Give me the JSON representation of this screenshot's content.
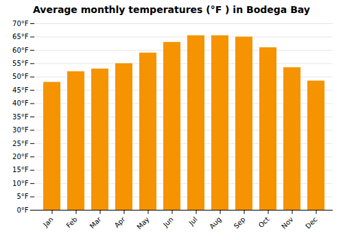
{
  "chart_data": {
    "type": "bar",
    "title": "Average monthly temperatures (°F ) in Bodega Bay",
    "categories": [
      "Jan",
      "Feb",
      "Mar",
      "Apr",
      "May",
      "Jun",
      "Jul",
      "Aug",
      "Sep",
      "Oct",
      "Nov",
      "Dec"
    ],
    "values": [
      48,
      52,
      53,
      55,
      59,
      63,
      65.5,
      65.5,
      65,
      61,
      53.5,
      48.5
    ],
    "color": "#F59300",
    "ylim": [
      0,
      70
    ],
    "yticks": [
      {
        "value": 0,
        "label": "0°F"
      },
      {
        "value": 5,
        "label": "5°F"
      },
      {
        "value": 10,
        "label": "10°F"
      },
      {
        "value": 15,
        "label": "15°F"
      },
      {
        "value": 20,
        "label": "20°F"
      },
      {
        "value": 25,
        "label": "25°F"
      },
      {
        "value": 30,
        "label": "30°F"
      },
      {
        "value": 35,
        "label": "35°F"
      },
      {
        "value": 40,
        "label": "40°F"
      },
      {
        "value": 45,
        "label": "45°F"
      },
      {
        "value": 50,
        "label": "50°F"
      },
      {
        "value": 55,
        "label": "55°F"
      },
      {
        "value": 60,
        "label": "60°F"
      },
      {
        "value": 65,
        "label": "65°F"
      },
      {
        "value": 70,
        "label": "70°F"
      }
    ],
    "grid": true
  }
}
